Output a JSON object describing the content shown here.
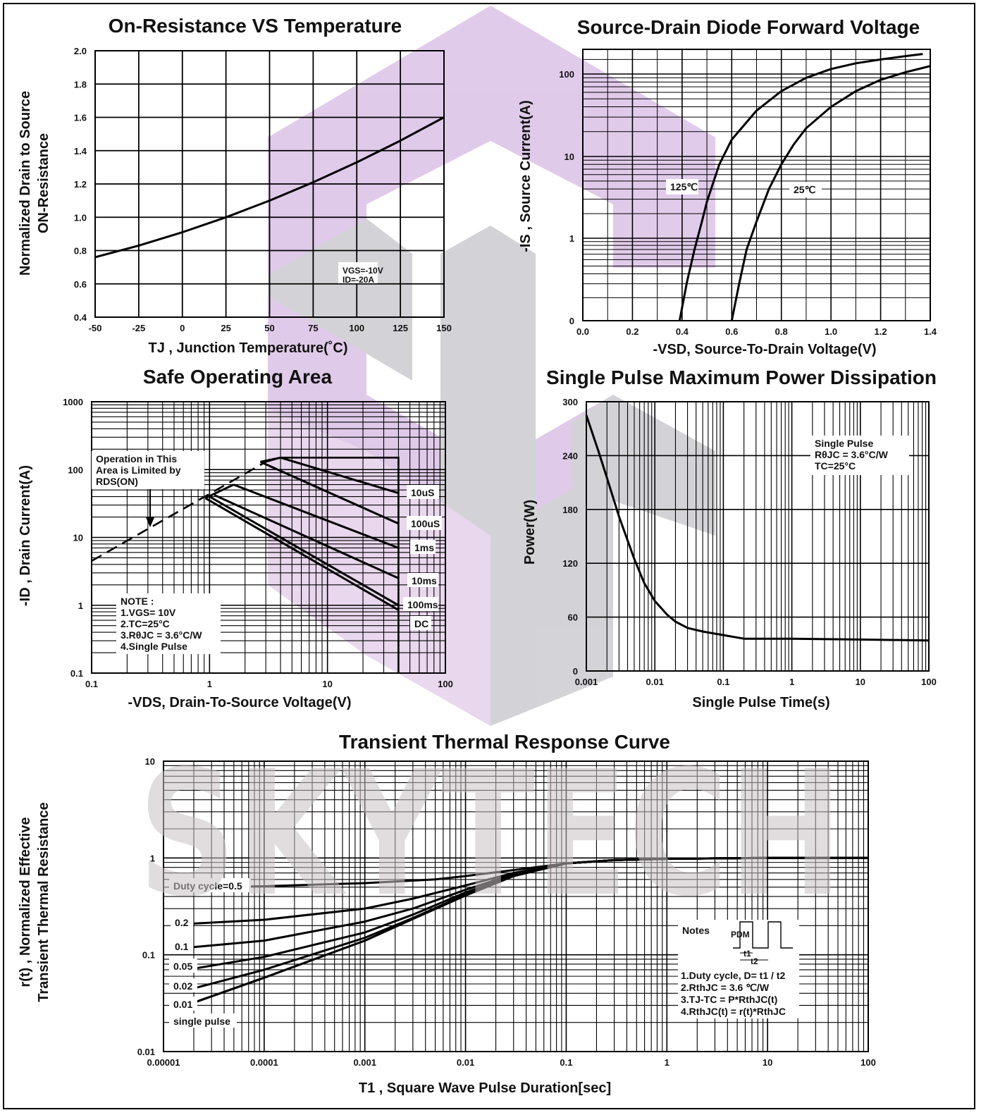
{
  "watermark": {
    "text": "SKYTECH",
    "text_color": "#c9c0c2",
    "logo_colors": [
      "#c8a0d8",
      "#b0b0b8",
      "#d8b8e0"
    ]
  },
  "chart_data": [
    {
      "id": "on-resistance",
      "type": "line",
      "title": "On-Resistance VS Temperature",
      "xlabel": "TJ , Junction Temperature(˚C)",
      "ylabel": [
        "Normalized Drain to Source",
        "ON-Resistance"
      ],
      "xlim": [
        -50,
        150
      ],
      "ylim": [
        0.4,
        2.0
      ],
      "x_ticks": [
        -50,
        -25,
        0,
        25,
        50,
        75,
        100,
        125,
        150
      ],
      "x_tick_labels": [
        "-50",
        "-25",
        "0",
        "25",
        "50",
        "75",
        "100",
        "125",
        "150"
      ],
      "y_ticks": [
        0.4,
        0.6,
        0.8,
        1.0,
        1.2,
        1.4,
        1.6,
        1.8,
        2.0
      ],
      "y_tick_labels": [
        "0.4",
        "0.6",
        "0.8",
        "1.0",
        "1.2",
        "1.4",
        "1.6",
        "1.8",
        "2.0"
      ],
      "grid": true,
      "annotations": [
        "VGS=-10V",
        "ID=-20A"
      ],
      "series": [
        {
          "x": [
            -50,
            -25,
            0,
            25,
            50,
            75,
            100,
            125,
            150
          ],
          "y": [
            0.76,
            0.83,
            0.91,
            1.0,
            1.1,
            1.21,
            1.33,
            1.46,
            1.6
          ]
        }
      ]
    },
    {
      "id": "forward-voltage",
      "type": "line",
      "title": "Source-Drain Diode Forward Voltage",
      "xlabel": "-VSD, Source-To-Drain Voltage(V)",
      "ylabel": "-IS , Source Current(A)",
      "xlim": [
        0.0,
        1.4
      ],
      "x_ticks": [
        0.0,
        0.2,
        0.4,
        0.6,
        0.8,
        1.0,
        1.2,
        1.4
      ],
      "x_tick_labels": [
        "0.0",
        "0.2",
        "0.4",
        "0.6",
        "0.8",
        "1.0",
        "1.2",
        "1.4"
      ],
      "y_tick_labels": [
        "0",
        "1",
        "10",
        "100"
      ],
      "grid": true,
      "series": [
        {
          "name": "125℃",
          "x": [
            0.39,
            0.42,
            0.45,
            0.48,
            0.5,
            0.55,
            0.6,
            0.7,
            0.8,
            0.9,
            1.0,
            1.1,
            1.2,
            1.3,
            1.37
          ],
          "y": [
            0,
            0.22,
            0.7,
            1.6,
            2.8,
            8,
            16,
            36,
            62,
            90,
            115,
            135,
            150,
            165,
            175
          ]
        },
        {
          "name": "25℃",
          "x": [
            0.6,
            0.63,
            0.66,
            0.7,
            0.75,
            0.8,
            0.85,
            0.9,
            1.0,
            1.1,
            1.2,
            1.3,
            1.4
          ],
          "y": [
            0,
            0.2,
            0.7,
            1.6,
            4,
            8,
            14,
            22,
            40,
            62,
            85,
            105,
            125
          ]
        }
      ]
    },
    {
      "id": "soa",
      "type": "line",
      "title": "Safe Operating Area",
      "xlabel": "-VDS, Drain-To-Source Voltage(V)",
      "ylabel": "-ID , Drain Current(A)",
      "xscale": "log",
      "yscale": "log",
      "xlim": [
        0.1,
        100
      ],
      "ylim": [
        0.1,
        1000
      ],
      "x_tick_labels": [
        "0.1",
        "1",
        "10",
        "100"
      ],
      "y_tick_labels": [
        "0.1",
        "1",
        "10",
        "100",
        "1000"
      ],
      "grid": true,
      "annotations": [
        "Operation in This",
        "Area is Limited by",
        "RDS(ON)"
      ],
      "notes": [
        "NOTE :",
        "1.VGS= 10V",
        "2.TC=25°C",
        "3.RθJC = 3.6°C/W",
        "4.Single Pulse"
      ],
      "series": [
        {
          "name": "RDS(ON) limit",
          "x": [
            0.1,
            3
          ],
          "y": [
            4.5,
            130
          ]
        },
        {
          "name": "10uS",
          "x": [
            4,
            40
          ],
          "y": [
            150,
            45
          ]
        },
        {
          "name": "100uS",
          "x": [
            2.7,
            40
          ],
          "y": [
            130,
            16
          ]
        },
        {
          "name": "1ms",
          "x": [
            1.6,
            40
          ],
          "y": [
            60,
            7
          ]
        },
        {
          "name": "10ms",
          "x": [
            1.1,
            40
          ],
          "y": [
            42,
            2.5
          ]
        },
        {
          "name": "100ms",
          "x": [
            1.0,
            40
          ],
          "y": [
            40,
            1.0
          ]
        },
        {
          "name": "DC",
          "x": [
            0.92,
            40
          ],
          "y": [
            38,
            0.85
          ]
        }
      ]
    },
    {
      "id": "power-dissipation",
      "type": "line",
      "title": "Single Pulse Maximum Power Dissipation",
      "xlabel": "Single Pulse Time(s)",
      "ylabel": "Power(W)",
      "xscale": "log",
      "xlim": [
        0.001,
        100
      ],
      "ylim": [
        0,
        300
      ],
      "x_tick_labels": [
        "0.001",
        "0.01",
        "0.1",
        "1",
        "10",
        "100"
      ],
      "y_ticks": [
        0,
        60,
        120,
        180,
        240,
        300
      ],
      "y_tick_labels": [
        "0",
        "60",
        "120",
        "180",
        "240",
        "300"
      ],
      "grid": true,
      "annotations": [
        "Single Pulse",
        "RθJC = 3.6°C/W",
        "TC=25°C"
      ],
      "series": [
        {
          "x": [
            0.001,
            0.0015,
            0.002,
            0.003,
            0.005,
            0.007,
            0.01,
            0.015,
            0.02,
            0.03,
            0.05,
            0.1,
            0.2,
            0.5,
            1,
            10,
            100
          ],
          "y": [
            285,
            245,
            215,
            172,
            125,
            98,
            78,
            63,
            55,
            48,
            44,
            40,
            36,
            36,
            36,
            35,
            34
          ]
        }
      ]
    },
    {
      "id": "transient-thermal",
      "type": "line",
      "title": "Transient Thermal Response Curve",
      "xlabel": "T1 , Square Wave Pulse Duration[sec]",
      "ylabel": [
        "r(t) , Normalized Effective",
        "Transient Thermal Resistance"
      ],
      "xscale": "log",
      "yscale": "log",
      "xlim": [
        1e-05,
        100
      ],
      "ylim": [
        0.01,
        10
      ],
      "x_tick_labels": [
        "0.00001",
        "0.0001",
        "0.001",
        "0.01",
        "0.1",
        "1",
        "10",
        "100"
      ],
      "y_tick_labels": [
        "0.01",
        "0.1",
        "1",
        "10"
      ],
      "grid": true,
      "notes_title": "Notes",
      "notes": [
        "1.Duty cycle, D= t1 / t2",
        "2.RthJC = 3.6 ℃/W",
        "3.TJ-TC = P*RthJC(t)",
        "4.RthJC(t) = r(t)*RthJC"
      ],
      "waveform_labels": [
        "PDM",
        "t1",
        "t2"
      ],
      "series": [
        {
          "name": "Duty cycle=0.5",
          "x": [
            2e-05,
            0.0001,
            0.001,
            0.005,
            0.01,
            0.03,
            0.1,
            0.3,
            1,
            10,
            100
          ],
          "y": [
            0.5,
            0.51,
            0.55,
            0.6,
            0.65,
            0.75,
            0.88,
            0.95,
            0.98,
            1.0,
            1.0
          ]
        },
        {
          "name": "0.2",
          "x": [
            2e-05,
            0.0001,
            0.001,
            0.003,
            0.01,
            0.03,
            0.1,
            0.3,
            1,
            10,
            100
          ],
          "y": [
            0.21,
            0.23,
            0.3,
            0.38,
            0.52,
            0.7,
            0.88,
            0.95,
            0.98,
            1.0,
            1.0
          ]
        },
        {
          "name": "0.1",
          "x": [
            2e-05,
            0.0001,
            0.001,
            0.003,
            0.01,
            0.03,
            0.1,
            0.3,
            1,
            10,
            100
          ],
          "y": [
            0.12,
            0.14,
            0.22,
            0.3,
            0.47,
            0.68,
            0.88,
            0.95,
            0.98,
            1.0,
            1.0
          ]
        },
        {
          "name": "0.05",
          "x": [
            2e-05,
            0.0001,
            0.001,
            0.003,
            0.01,
            0.03,
            0.1,
            0.3,
            1,
            10,
            100
          ],
          "y": [
            0.072,
            0.095,
            0.17,
            0.26,
            0.44,
            0.66,
            0.88,
            0.95,
            0.98,
            1.0,
            1.0
          ]
        },
        {
          "name": "0.02",
          "x": [
            2e-05,
            0.0001,
            0.001,
            0.003,
            0.01,
            0.03,
            0.1,
            0.3,
            1,
            10,
            100
          ],
          "y": [
            0.045,
            0.07,
            0.15,
            0.24,
            0.42,
            0.65,
            0.88,
            0.95,
            0.98,
            1.0,
            1.0
          ]
        },
        {
          "name": "0.01",
          "x": [
            2e-05,
            0.0001,
            0.001,
            0.003,
            0.01,
            0.03,
            0.1,
            0.3,
            1,
            10,
            100
          ],
          "y": [
            0.032,
            0.058,
            0.14,
            0.235,
            0.41,
            0.65,
            0.88,
            0.95,
            0.98,
            1.0,
            1.0
          ]
        },
        {
          "name": "single pulse",
          "x": [
            2e-05,
            0.0001,
            0.001,
            0.003,
            0.01,
            0.03,
            0.1,
            0.3,
            1,
            10,
            100
          ],
          "y": [
            0.032,
            0.058,
            0.14,
            0.235,
            0.41,
            0.65,
            0.88,
            0.95,
            0.98,
            1.0,
            1.0
          ]
        }
      ]
    }
  ]
}
